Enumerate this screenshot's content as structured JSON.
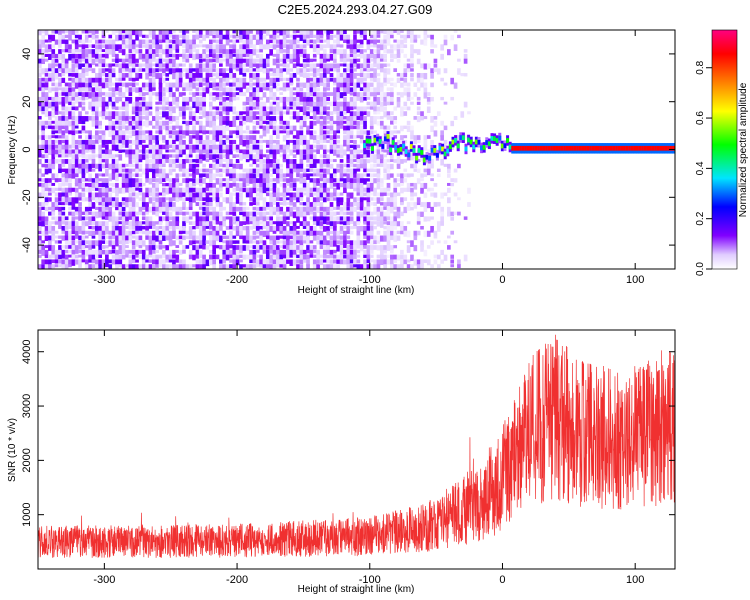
{
  "title": "C2E5.2024.293.04.27.G09",
  "chart_data": [
    {
      "type": "heatmap",
      "xlabel": "Height of straight line (km)",
      "ylabel": "Frequency (Hz)",
      "xlim": [
        -350,
        130
      ],
      "ylim": [
        -50,
        50
      ],
      "xticks": [
        -300,
        -200,
        -100,
        0,
        100
      ],
      "yticks": [
        -40,
        -20,
        0,
        20,
        40
      ],
      "colorbar": {
        "label": "Normalized spectral amplitude",
        "range": [
          0,
          0.95
        ],
        "ticks": [
          0.0,
          0.2,
          0.4,
          0.6,
          0.8
        ],
        "colors": [
          "#ffffff",
          "#8000ff",
          "#0000ff",
          "#00e5ff",
          "#00ff00",
          "#ffff00",
          "#ff8000",
          "#ff0000",
          "#ff0080"
        ]
      },
      "features": {
        "noise_region_x": [
          -350,
          -25
        ],
        "noise_density_fade_x": [
          -100,
          -25
        ],
        "signal_band": {
          "x": [
            -105,
            130
          ],
          "freq_hz": 0.5,
          "peak_amplitude": 0.9
        }
      }
    },
    {
      "type": "line",
      "xlabel": "Height of straight line (km)",
      "ylabel": "SNR (10 * v/v)",
      "xlim": [
        -350,
        130
      ],
      "ylim": [
        0,
        4400
      ],
      "xticks": [
        -300,
        -200,
        -100,
        0,
        100
      ],
      "yticks": [
        1000,
        2000,
        3000,
        4000
      ],
      "series": [
        {
          "color": "#f03030",
          "envelope": [
            {
              "x": -350,
              "y": 500
            },
            {
              "x": -200,
              "y": 520
            },
            {
              "x": -100,
              "y": 600
            },
            {
              "x": -60,
              "y": 750
            },
            {
              "x": -40,
              "y": 950
            },
            {
              "x": -20,
              "y": 1200
            },
            {
              "x": -5,
              "y": 1500
            },
            {
              "x": 5,
              "y": 1900
            },
            {
              "x": 20,
              "y": 2500
            },
            {
              "x": 40,
              "y": 2800
            },
            {
              "x": 60,
              "y": 2500
            },
            {
              "x": 90,
              "y": 2350
            },
            {
              "x": 110,
              "y": 2500
            },
            {
              "x": 130,
              "y": 2700
            }
          ]
        }
      ]
    }
  ]
}
